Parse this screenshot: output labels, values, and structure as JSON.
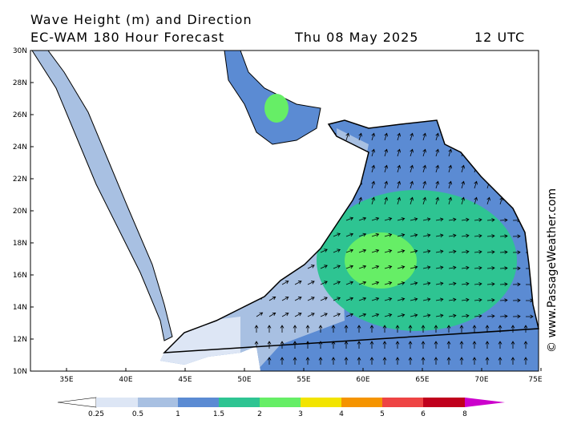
{
  "header": {
    "title": "Wave Height (m) and Direction",
    "model": "EC-WAM 180 Hour Forecast",
    "date": "Thu 08 May 2025",
    "time": "12 UTC"
  },
  "axes": {
    "lat_labels": [
      "30N",
      "28N",
      "26N",
      "24N",
      "22N",
      "20N",
      "18N",
      "16N",
      "14N",
      "12N",
      "10N"
    ],
    "lon_labels": [
      "35E",
      "40E",
      "45E",
      "50E",
      "55E",
      "60E",
      "65E",
      "70E",
      "75E"
    ]
  },
  "legend": {
    "labels": [
      "0.25",
      "0.5",
      "1",
      "1.5",
      "2",
      "3",
      "4",
      "5",
      "6",
      "8"
    ]
  },
  "credit": "© www.PassageWeather.com"
}
